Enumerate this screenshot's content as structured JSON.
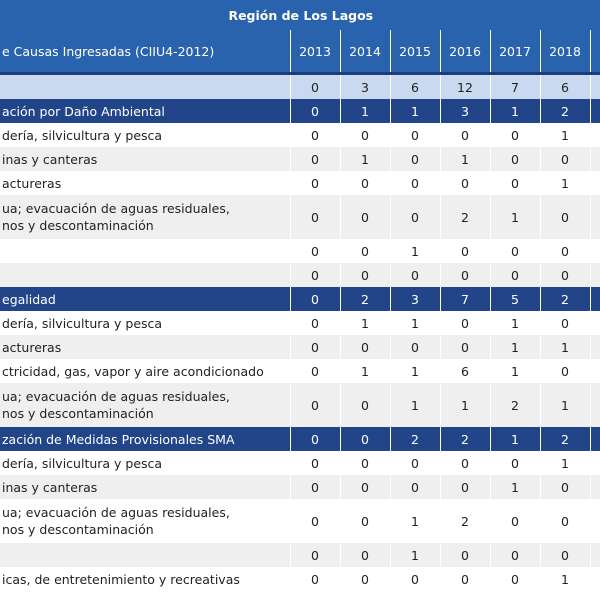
{
  "header": {
    "title": "Región de Los Lagos",
    "label": "e Causas Ingresadas (CIIU4-2012)",
    "columns": [
      "2013",
      "2014",
      "2015",
      "2016",
      "2017",
      "2018"
    ]
  },
  "total": [
    0,
    3,
    6,
    12,
    7,
    6
  ],
  "sections": [
    {
      "title": "ación por Daño Ambiental",
      "values": [
        0,
        1,
        1,
        3,
        1,
        2
      ],
      "rows": [
        {
          "label": "dería, silvicultura y pesca",
          "values": [
            0,
            0,
            0,
            0,
            0,
            1
          ]
        },
        {
          "label": "inas y canteras",
          "values": [
            0,
            1,
            0,
            1,
            0,
            0
          ]
        },
        {
          "label": "actureras",
          "values": [
            0,
            0,
            0,
            0,
            0,
            1
          ]
        },
        {
          "label": "ua; evacuación de aguas residuales,\nnos y descontaminación",
          "values": [
            0,
            0,
            0,
            2,
            1,
            0
          ]
        },
        {
          "values": [
            0,
            0,
            1,
            0,
            0,
            0
          ]
        },
        {
          "values": [
            0,
            0,
            0,
            0,
            0,
            0
          ]
        }
      ]
    },
    {
      "title": "egalidad",
      "values": [
        0,
        2,
        3,
        7,
        5,
        2
      ],
      "rows": [
        {
          "label": "dería, silvicultura y pesca",
          "values": [
            0,
            1,
            1,
            0,
            1,
            0
          ]
        },
        {
          "label": "actureras",
          "values": [
            0,
            0,
            0,
            0,
            1,
            1
          ]
        },
        {
          "label": "ctricidad, gas, vapor y aire acondicionado",
          "values": [
            0,
            1,
            1,
            6,
            1,
            0
          ]
        },
        {
          "label": "ua; evacuación de aguas residuales,\nnos y descontaminación",
          "values": [
            0,
            0,
            1,
            1,
            2,
            1
          ]
        }
      ]
    },
    {
      "title": "zación de Medidas Provisionales SMA",
      "values": [
        0,
        0,
        2,
        2,
        1,
        2
      ],
      "rows": [
        {
          "label": "dería, silvicultura y pesca",
          "values": [
            0,
            0,
            0,
            0,
            0,
            1
          ]
        },
        {
          "label": "inas y canteras",
          "values": [
            0,
            0,
            0,
            0,
            1,
            0
          ]
        },
        {
          "label": "ua; evacuación de aguas residuales,\nnos y descontaminación",
          "values": [
            0,
            0,
            1,
            2,
            0,
            0
          ]
        },
        {
          "values": [
            0,
            0,
            1,
            0,
            0,
            0
          ]
        },
        {
          "label": "icas, de entretenimiento y recreativas",
          "values": [
            0,
            0,
            0,
            0,
            0,
            1
          ]
        }
      ]
    }
  ]
}
